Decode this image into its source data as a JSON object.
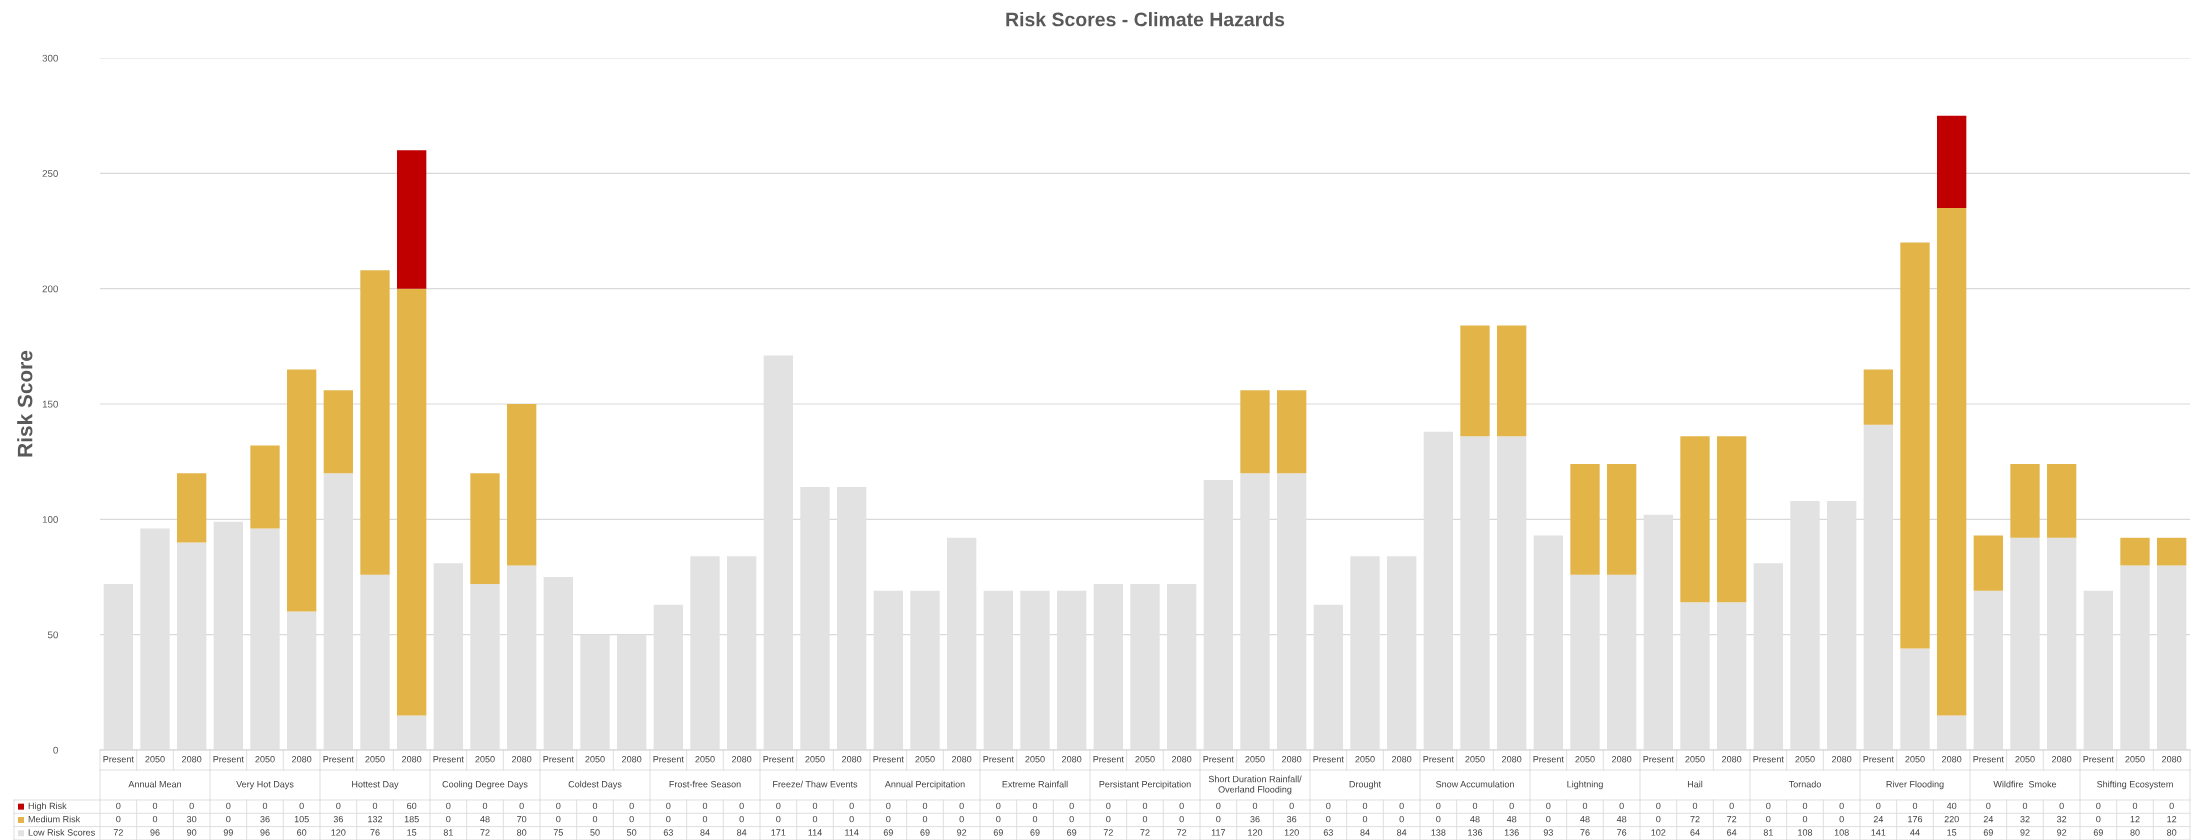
{
  "chart_data": {
    "type": "bar",
    "title": "Risk Scores - Climate Hazards",
    "ylabel": "Risk Score",
    "stacked": true,
    "data_labels": true,
    "grid": "y",
    "legend": "bottom left",
    "categories": [
      "Present",
      "2050",
      "2080",
      "Present",
      "2050",
      "2080",
      "Present",
      "2050",
      "2080",
      "Present",
      "2050",
      "2080",
      "Present",
      "2050",
      "2080",
      "Present",
      "2050",
      "2080",
      "Present",
      "2050",
      "2080",
      "Present",
      "2050",
      "2080",
      "Present",
      "2050",
      "2080",
      "Present",
      "2050",
      "2080",
      "Present",
      "2050",
      "2080",
      "Present",
      "2050",
      "2080",
      "Present",
      "2050",
      "2080",
      "Present",
      "2050",
      "2080",
      "Present",
      "2050",
      "2080",
      "Present",
      "2050",
      "2080",
      "Present",
      "2050",
      "2080",
      "Present",
      "2050",
      "2080",
      "Present",
      "2050",
      "2080"
    ],
    "annotations": [
      "Annual Mean",
      "Very Hot Days",
      "Hottest Day",
      "Cooling Degree Days",
      "Coldest Days",
      "Frost-free Season",
      "Freeze/ Thaw Events",
      "Annual Percipitation",
      "Extreme Rainfall",
      "Persistant Percipitation",
      "Short Duration Rainfall/\nOverland Flooding",
      "Drought",
      "Snow Accumulation",
      "Lightning",
      "Hail",
      "Tornado",
      "River Flooding",
      "Wildfire  Smoke",
      "Shifting Ecosystem"
    ],
    "ylim": [
      0,
      300
    ],
    "yticks": [
      0,
      50,
      100,
      150,
      200,
      250,
      300
    ],
    "series": [
      {
        "name": "Low Risk Scores",
        "color": "#e2e2e2",
        "values": [
          72,
          96,
          90,
          99,
          96,
          60,
          120,
          76,
          15,
          81,
          72,
          80,
          75,
          50,
          50,
          63,
          84,
          84,
          171,
          114,
          114,
          69,
          69,
          92,
          69,
          69,
          69,
          72,
          72,
          72,
          117,
          120,
          120,
          63,
          84,
          84,
          138,
          136,
          136,
          93,
          76,
          76,
          102,
          64,
          64,
          81,
          108,
          108,
          141,
          44,
          15,
          69,
          92,
          92,
          69,
          80,
          80
        ]
      },
      {
        "name": "Medium Risk",
        "color": "#e3b448",
        "values": [
          0,
          0,
          30,
          0,
          36,
          105,
          36,
          132,
          185,
          0,
          48,
          70,
          0,
          0,
          0,
          0,
          0,
          0,
          0,
          0,
          0,
          0,
          0,
          0,
          0,
          0,
          0,
          0,
          0,
          0,
          0,
          36,
          36,
          0,
          0,
          0,
          0,
          48,
          48,
          0,
          48,
          48,
          0,
          72,
          72,
          0,
          0,
          0,
          24,
          176,
          220,
          24,
          32,
          32,
          0,
          12,
          12
        ]
      },
      {
        "name": "High Risk",
        "color": "#c00000",
        "values": [
          0,
          0,
          0,
          0,
          0,
          0,
          0,
          0,
          60,
          0,
          0,
          0,
          0,
          0,
          0,
          0,
          0,
          0,
          0,
          0,
          0,
          0,
          0,
          0,
          0,
          0,
          0,
          0,
          0,
          0,
          0,
          0,
          0,
          0,
          0,
          0,
          0,
          0,
          0,
          0,
          0,
          0,
          0,
          0,
          0,
          0,
          0,
          0,
          0,
          0,
          40,
          0,
          0,
          0,
          0,
          0,
          0
        ]
      }
    ]
  }
}
